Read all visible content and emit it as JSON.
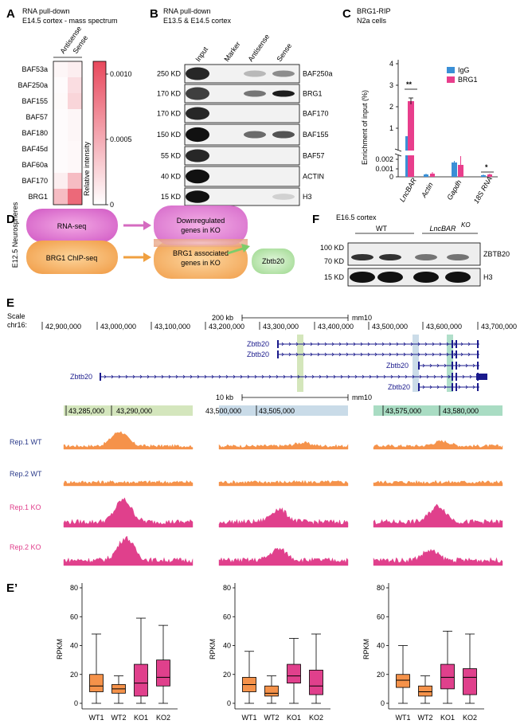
{
  "panelA": {
    "label": "A",
    "title1": "RNA pull-down",
    "title2": "E14.5 cortex - mass spectrum",
    "columns": [
      "Antisense",
      "Sense"
    ],
    "rows": [
      "BAF53a",
      "BAF250a",
      "BAF155",
      "BAF57",
      "BAF180",
      "BAF45d",
      "BAF60a",
      "BAF170",
      "BRG1"
    ],
    "colorbar_ticks": [
      "0.0010",
      "0.0005",
      "0"
    ],
    "colorbar_label": "Relative intensity",
    "heat_values": [
      [
        5e-05,
        0.0001
      ],
      [
        2e-05,
        0.0002
      ],
      [
        3e-05,
        0.00025
      ],
      [
        2e-05,
        5e-05
      ],
      [
        2e-05,
        5e-05
      ],
      [
        2e-05,
        4e-05
      ],
      [
        2e-05,
        4e-05
      ],
      [
        0.0001,
        0.0004
      ],
      [
        0.0004,
        0.0009
      ]
    ]
  },
  "panelB": {
    "label": "B",
    "title1": "RNA pull-down",
    "title2": "E13.5 & E14.5 cortex",
    "lanes": [
      "Input",
      "Marker",
      "Antisense",
      "Sense"
    ],
    "markers": [
      "250 KD",
      "170 KD",
      "170 KD",
      "150 KD",
      "55 KD",
      "40 KD",
      "15 KD"
    ],
    "proteins": [
      "BAF250a",
      "BRG1",
      "BAF170",
      "BAF155",
      "BAF57",
      "ACTIN",
      "H3"
    ]
  },
  "panelC": {
    "label": "C",
    "title1": "BRG1-RIP",
    "title2": "N2a cells",
    "ylabel": "Enrichment of input (%)",
    "yticks": [
      "4",
      "3",
      "2",
      "1",
      "0.002",
      "0.001",
      "0"
    ],
    "categories": [
      "LncBAR",
      "Actin",
      "Gapdh",
      "18S RNA"
    ],
    "legend": [
      "IgG",
      "BRG1"
    ],
    "sig": [
      "**",
      "*"
    ],
    "colors": {
      "igg": "#3a8fd6",
      "brg1": "#e83e8c"
    }
  },
  "panelD": {
    "label": "D",
    "side": "E12.5 Neurospheres",
    "box1": "RNA-seq",
    "box2": "BRG1 ChIP-seq",
    "box3a": "Downregulated",
    "box3b": "genes in KO",
    "box4a": "BRG1 associated",
    "box4b": "genes in KO",
    "result": "Zbtb20"
  },
  "panelF": {
    "label": "F",
    "title": "E16.5 cortex",
    "groups": [
      "WT",
      "LncBAR",
      "KO"
    ],
    "markers": [
      "100 KD",
      "70 KD",
      "15 KD"
    ],
    "proteins": [
      "ZBTB20",
      "H3"
    ]
  },
  "panelE": {
    "label": "E",
    "scale": "Scale",
    "chrom": "chr16:",
    "scale_top": "200 kb",
    "assembly": "mm10",
    "coords": [
      "42,900,000",
      "43,000,000",
      "43,100,000",
      "43,200,000",
      "43,300,000",
      "43,400,000",
      "43,500,000",
      "43,600,000",
      "43,700,000"
    ],
    "gene": "Zbtb20",
    "scale_bottom": "10 kb",
    "zoom_labels": [
      [
        "43,285,000",
        "43,290,000"
      ],
      [
        "43,500,000",
        "43,505,000"
      ],
      [
        "43,575,000",
        "43,580,000"
      ]
    ],
    "tracks": [
      "Rep.1 WT",
      "Rep.2 WT",
      "Rep.1 KO",
      "Rep.2 KO"
    ],
    "colors": {
      "wt": "#f5924a",
      "ko": "#e0408c",
      "wt_label": "#2a3a8a",
      "ko_label": "#e0408c"
    }
  },
  "panelE2": {
    "label": "E’",
    "ylabel": "RPKM",
    "yticks": [
      "80",
      "60",
      "40",
      "20",
      "0"
    ],
    "xticks": [
      "WT1",
      "WT2",
      "KO1",
      "KO2"
    ],
    "boxes": [
      [
        [
          0,
          8,
          12,
          20,
          48
        ],
        [
          0,
          7,
          10,
          13,
          19
        ],
        [
          0,
          5,
          14,
          27,
          59
        ],
        [
          0,
          12,
          18,
          30,
          54
        ]
      ],
      [
        [
          0,
          8,
          13,
          18,
          36
        ],
        [
          0,
          5,
          7,
          12,
          19
        ],
        [
          0,
          14,
          19,
          27,
          45
        ],
        [
          0,
          6,
          12,
          23,
          48
        ]
      ],
      [
        [
          0,
          11,
          16,
          20,
          40
        ],
        [
          0,
          5,
          8,
          12,
          19
        ],
        [
          0,
          10,
          18,
          27,
          50
        ],
        [
          0,
          6,
          18,
          24,
          48
        ]
      ]
    ]
  }
}
